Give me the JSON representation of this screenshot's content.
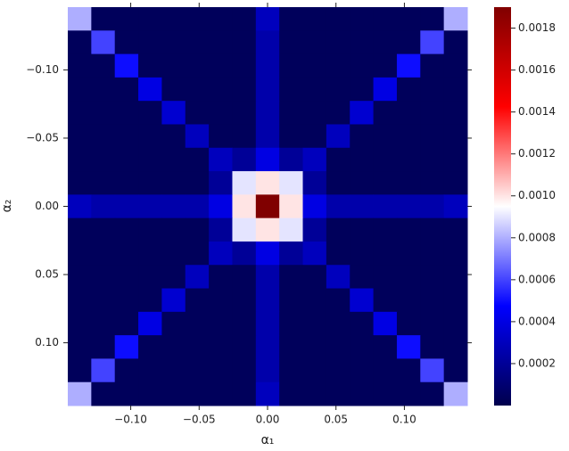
{
  "chart_data": {
    "type": "heatmap",
    "xlabel": "α₁",
    "ylabel": "α₂",
    "xlim": [
      -0.146,
      0.146
    ],
    "ylim": [
      -0.146,
      0.146
    ],
    "y_inverted": true,
    "xticks": [
      {
        "value": -0.1,
        "label": "−0.10"
      },
      {
        "value": -0.05,
        "label": "−0.05"
      },
      {
        "value": 0,
        "label": "0.00"
      },
      {
        "value": 0.05,
        "label": "0.05"
      },
      {
        "value": 0.1,
        "label": "0.10"
      }
    ],
    "yticks": [
      {
        "value": -0.1,
        "label": "−0.10"
      },
      {
        "value": -0.05,
        "label": "−0.05"
      },
      {
        "value": 0,
        "label": "0.00"
      },
      {
        "value": 0.05,
        "label": "0.05"
      },
      {
        "value": 0.1,
        "label": "0.10"
      }
    ],
    "clim": [
      0,
      0.0019
    ],
    "cticks": [
      0.0002,
      0.0004,
      0.0006,
      0.0008,
      {
        "value": 0.001,
        "label": "0.0010"
      },
      0.0012,
      0.0014,
      0.0016,
      0.0018
    ],
    "colormap": [
      "#00004c",
      "#0000ff",
      "#ffffff",
      "#ff0000",
      "#800000"
    ],
    "z": [
      [
        0.0008,
        4e-05,
        4e-05,
        4e-05,
        4e-05,
        4e-05,
        4e-05,
        4e-05,
        0.0003,
        4e-05,
        4e-05,
        4e-05,
        4e-05,
        4e-05,
        4e-05,
        4e-05,
        0.0008
      ],
      [
        4e-05,
        0.0006,
        4e-05,
        4e-05,
        4e-05,
        4e-05,
        4e-05,
        4e-05,
        0.00025,
        4e-05,
        4e-05,
        4e-05,
        4e-05,
        4e-05,
        4e-05,
        0.0006,
        4e-05
      ],
      [
        4e-05,
        4e-05,
        0.0005,
        4e-05,
        4e-05,
        4e-05,
        4e-05,
        4e-05,
        0.00025,
        4e-05,
        4e-05,
        4e-05,
        4e-05,
        4e-05,
        0.0005,
        4e-05,
        4e-05
      ],
      [
        4e-05,
        4e-05,
        4e-05,
        0.0004,
        4e-05,
        4e-05,
        4e-05,
        4e-05,
        0.00025,
        4e-05,
        4e-05,
        4e-05,
        4e-05,
        0.0004,
        4e-05,
        4e-05,
        4e-05
      ],
      [
        4e-05,
        4e-05,
        4e-05,
        4e-05,
        0.00035,
        4e-05,
        4e-05,
        4e-05,
        0.00025,
        4e-05,
        4e-05,
        4e-05,
        0.00035,
        4e-05,
        4e-05,
        4e-05,
        4e-05
      ],
      [
        4e-05,
        4e-05,
        4e-05,
        4e-05,
        4e-05,
        0.0003,
        4e-05,
        4e-05,
        0.00025,
        4e-05,
        4e-05,
        0.0003,
        4e-05,
        4e-05,
        4e-05,
        4e-05,
        4e-05
      ],
      [
        4e-05,
        4e-05,
        4e-05,
        4e-05,
        4e-05,
        4e-05,
        0.0003,
        0.0002,
        0.0004,
        0.0002,
        0.0003,
        4e-05,
        4e-05,
        4e-05,
        4e-05,
        4e-05,
        4e-05
      ],
      [
        4e-05,
        4e-05,
        4e-05,
        4e-05,
        4e-05,
        4e-05,
        0.0002,
        0.0009,
        0.001,
        0.0009,
        0.0002,
        4e-05,
        4e-05,
        4e-05,
        4e-05,
        4e-05,
        4e-05
      ],
      [
        0.0003,
        0.00025,
        0.00025,
        0.00025,
        0.00025,
        0.00025,
        0.0004,
        0.001,
        0.0019,
        0.001,
        0.0004,
        0.00025,
        0.00025,
        0.00025,
        0.00025,
        0.00025,
        0.0003
      ],
      [
        4e-05,
        4e-05,
        4e-05,
        4e-05,
        4e-05,
        4e-05,
        0.0002,
        0.0009,
        0.001,
        0.0009,
        0.0002,
        4e-05,
        4e-05,
        4e-05,
        4e-05,
        4e-05,
        4e-05
      ],
      [
        4e-05,
        4e-05,
        4e-05,
        4e-05,
        4e-05,
        4e-05,
        0.0003,
        0.0002,
        0.0004,
        0.0002,
        0.0003,
        4e-05,
        4e-05,
        4e-05,
        4e-05,
        4e-05,
        4e-05
      ],
      [
        4e-05,
        4e-05,
        4e-05,
        4e-05,
        4e-05,
        0.0003,
        4e-05,
        4e-05,
        0.00025,
        4e-05,
        4e-05,
        0.0003,
        4e-05,
        4e-05,
        4e-05,
        4e-05,
        4e-05
      ],
      [
        4e-05,
        4e-05,
        4e-05,
        4e-05,
        0.00035,
        4e-05,
        4e-05,
        4e-05,
        0.00025,
        4e-05,
        4e-05,
        4e-05,
        0.00035,
        4e-05,
        4e-05,
        4e-05,
        4e-05
      ],
      [
        4e-05,
        4e-05,
        4e-05,
        0.0004,
        4e-05,
        4e-05,
        4e-05,
        4e-05,
        0.00025,
        4e-05,
        4e-05,
        4e-05,
        4e-05,
        0.0004,
        4e-05,
        4e-05,
        4e-05
      ],
      [
        4e-05,
        4e-05,
        0.0005,
        4e-05,
        4e-05,
        4e-05,
        4e-05,
        4e-05,
        0.00025,
        4e-05,
        4e-05,
        4e-05,
        4e-05,
        4e-05,
        0.0005,
        4e-05,
        4e-05
      ],
      [
        4e-05,
        0.0006,
        4e-05,
        4e-05,
        4e-05,
        4e-05,
        4e-05,
        4e-05,
        0.00025,
        4e-05,
        4e-05,
        4e-05,
        4e-05,
        4e-05,
        4e-05,
        0.0006,
        4e-05
      ],
      [
        0.0008,
        4e-05,
        4e-05,
        4e-05,
        4e-05,
        4e-05,
        4e-05,
        4e-05,
        0.0003,
        4e-05,
        4e-05,
        4e-05,
        4e-05,
        4e-05,
        4e-05,
        4e-05,
        0.0008
      ]
    ]
  }
}
